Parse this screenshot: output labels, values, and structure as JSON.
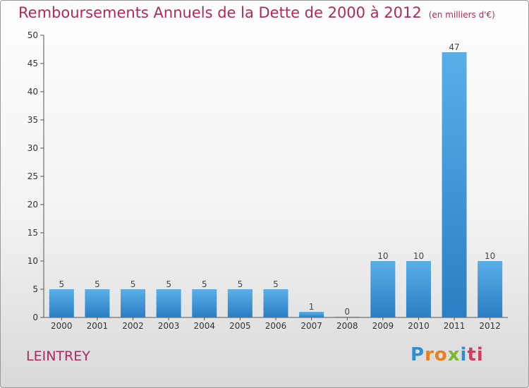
{
  "header": {
    "title": "Remboursements Annuels de la Dette de 2000 à 2012",
    "unit": "(en milliers d'€)"
  },
  "footer": {
    "commune": "LEINTREY",
    "logo_letters": [
      "P",
      "r",
      "o",
      "x",
      "i",
      "ti"
    ]
  },
  "colors": {
    "title": "#b1295a",
    "bar_top": "#5aaee8",
    "bar_bottom": "#2a7fc4"
  },
  "chart_data": {
    "type": "bar",
    "title": "Remboursements Annuels de la Dette de 2000 à 2012",
    "categories": [
      "2000",
      "2001",
      "2002",
      "2003",
      "2004",
      "2005",
      "2006",
      "2007",
      "2008",
      "2009",
      "2010",
      "2011",
      "2012"
    ],
    "values": [
      5,
      5,
      5,
      5,
      5,
      5,
      5,
      1,
      0,
      10,
      10,
      47,
      10
    ],
    "data_labels": [
      "5",
      "5",
      "5",
      "5",
      "5",
      "5",
      "5",
      "1",
      "0",
      "10",
      "10",
      "47",
      "10"
    ],
    "xlabel": "",
    "ylabel": "",
    "ylim": [
      0,
      50
    ],
    "yticks": [
      0,
      5,
      10,
      15,
      20,
      25,
      30,
      35,
      40,
      45,
      50
    ],
    "grid": false,
    "legend": "none"
  }
}
